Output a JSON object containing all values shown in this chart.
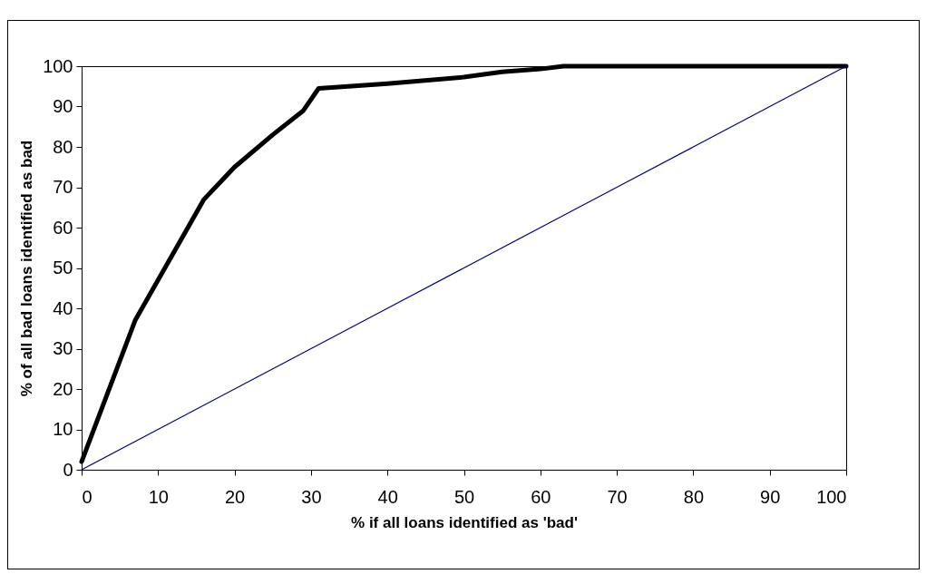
{
  "chart_data": {
    "type": "line",
    "xlabel": "% if all loans identified as 'bad'",
    "ylabel": "% of all bad loans identified as bad",
    "xlim": [
      0,
      100
    ],
    "ylim": [
      0,
      100
    ],
    "xticks": [
      0,
      10,
      20,
      30,
      40,
      50,
      60,
      70,
      80,
      90,
      100
    ],
    "yticks": [
      0,
      10,
      20,
      30,
      40,
      50,
      60,
      70,
      80,
      90,
      100
    ],
    "grid": false,
    "marker": "none",
    "line_style": "solid",
    "series": [
      {
        "color": "#000000",
        "x": [
          0,
          7,
          10,
          16,
          20,
          25,
          29,
          31,
          40,
          50,
          55,
          60,
          63,
          68,
          100
        ],
        "values": [
          2,
          37,
          47,
          67,
          75,
          83,
          89,
          94.5,
          95.7,
          97.3,
          98.6,
          99.3,
          100,
          100,
          100
        ]
      },
      {
        "color": "#000080",
        "x": [
          0,
          10,
          20,
          30,
          40,
          50,
          60,
          70,
          80,
          90,
          100
        ],
        "values": [
          0,
          10,
          20,
          30,
          40,
          50,
          60,
          70,
          80,
          90,
          100
        ]
      }
    ]
  }
}
